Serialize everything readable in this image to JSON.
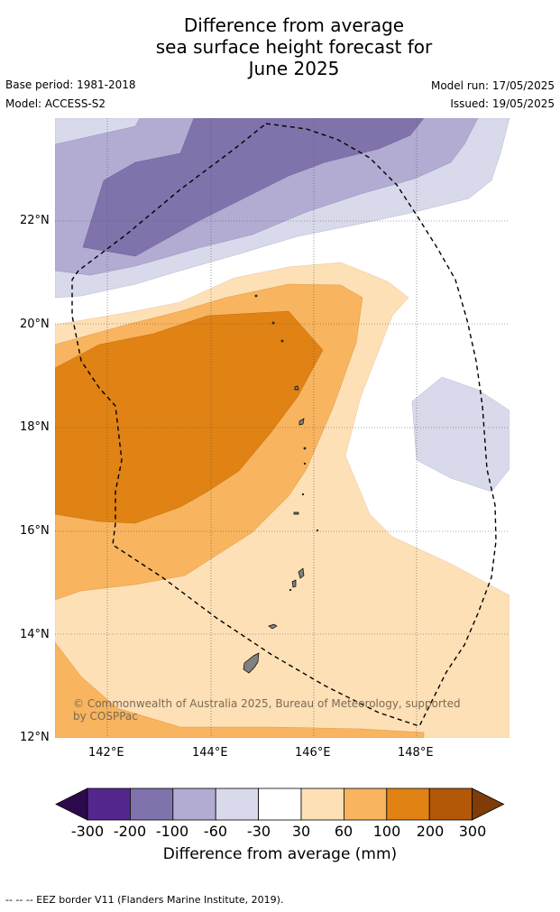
{
  "title": {
    "line1": "Difference from average",
    "line2": "sea surface height forecast for",
    "line3": "June 2025"
  },
  "meta": {
    "base_period": "Base period: 1981-2018",
    "model": "Model: ACCESS-S2",
    "model_run": "Model run: 17/05/2025",
    "issued": "Issued: 19/05/2025"
  },
  "map": {
    "lat_ticks": [
      "22°N",
      "20°N",
      "18°N",
      "16°N",
      "14°N",
      "12°N"
    ],
    "lon_ticks": [
      "142°E",
      "144°E",
      "146°E",
      "148°E"
    ],
    "lat_range": [
      12,
      24
    ],
    "lon_range": [
      141,
      149.8
    ],
    "copyright": "© Commonwealth of Australia 2025, Bureau of Meteorology, supported by COSPPac"
  },
  "colorbar": {
    "labels": [
      "-300",
      "-200",
      "-100",
      "-60",
      "-30",
      "30",
      "60",
      "100",
      "200",
      "300"
    ],
    "colors": [
      "#2d0a4e",
      "#54278f",
      "#8073ac",
      "#b2abd2",
      "#d8daeb",
      "#ffffff",
      "#fee0b6",
      "#f8b45f",
      "#e08214",
      "#b35806",
      "#7f3b08"
    ],
    "title": "Difference from average (mm)"
  },
  "footer": "--  --  -- EEZ border V11 (Flanders Marine Institute, 2019)."
}
